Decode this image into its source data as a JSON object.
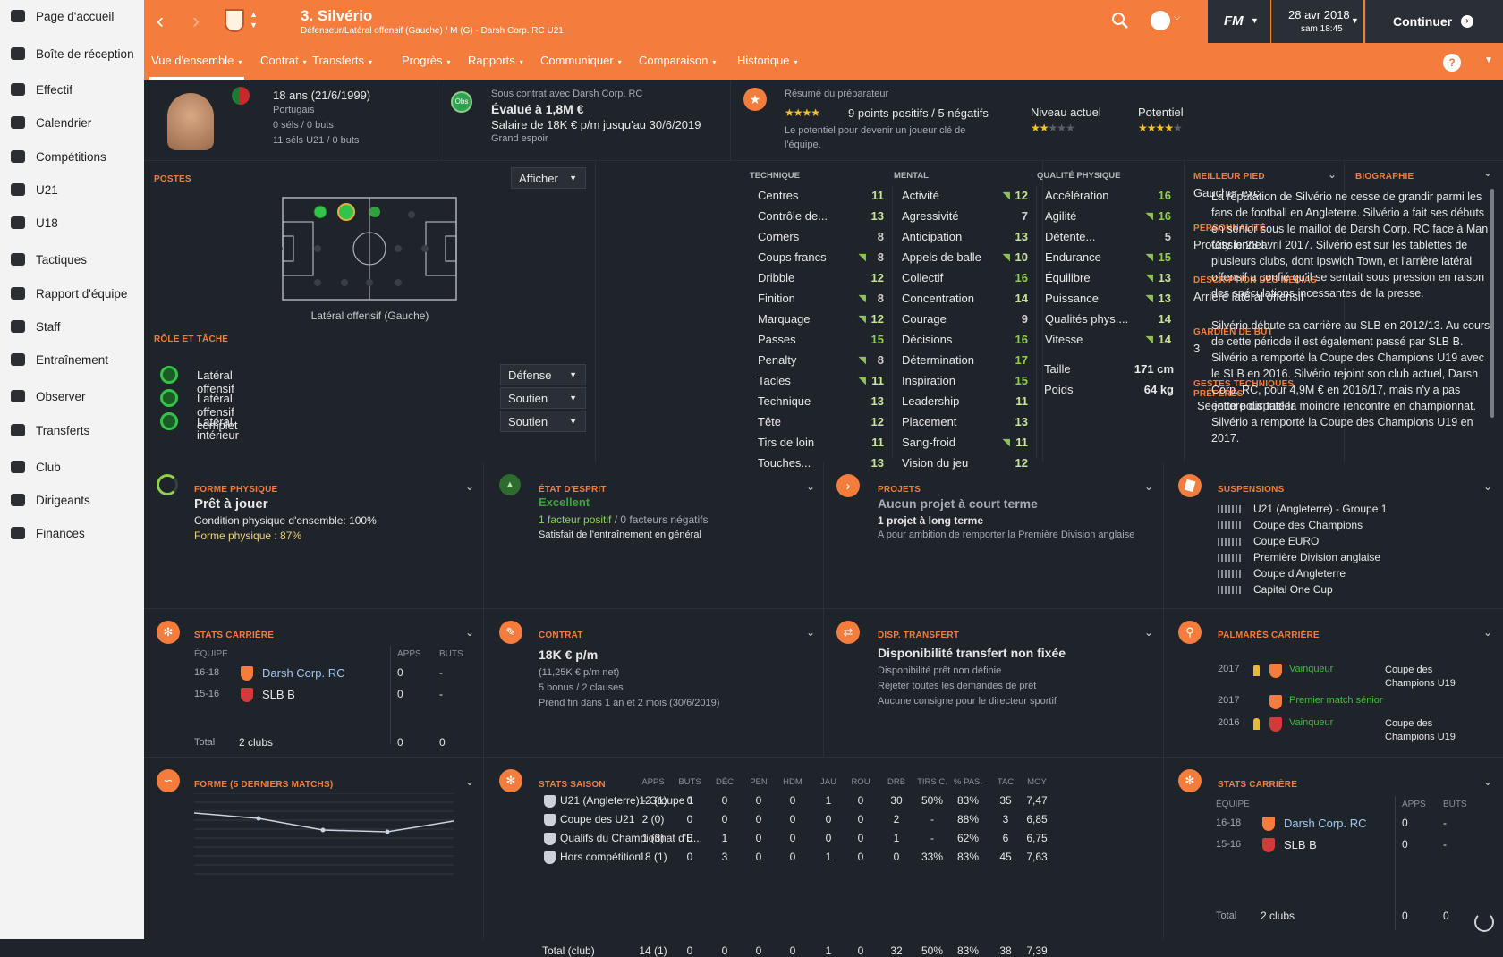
{
  "sidebar": {
    "items": [
      {
        "label": "Page d'accueil",
        "icon": "home-icon"
      },
      {
        "label": "Boîte de réception",
        "icon": "inbox-icon"
      },
      {
        "label": "Effectif",
        "icon": "squad-icon"
      },
      {
        "label": "Calendrier",
        "icon": "calendar-icon"
      },
      {
        "label": "Compétitions",
        "icon": "trophy-icon"
      },
      {
        "label": "U21",
        "icon": "u21-icon"
      },
      {
        "label": "U18",
        "icon": "u18-icon"
      },
      {
        "label": "Tactiques",
        "icon": "tactics-icon"
      },
      {
        "label": "Rapport d'équipe",
        "icon": "report-icon"
      },
      {
        "label": "Staff",
        "icon": "staff-icon"
      },
      {
        "label": "Entraînement",
        "icon": "training-icon"
      },
      {
        "label": "Observer",
        "icon": "search-icon"
      },
      {
        "label": "Transferts",
        "icon": "transfer-icon"
      },
      {
        "label": "Club",
        "icon": "shield-icon"
      },
      {
        "label": "Dirigeants",
        "icon": "board-icon"
      },
      {
        "label": "Finances",
        "icon": "pound-icon"
      }
    ]
  },
  "header": {
    "player_name": "3. Silvério",
    "subtitle": "Défenseur/Latéral offensif (Gauche) / M (G) - Darsh Corp. RC U21",
    "date": "28 avr 2018",
    "time": "sam 18:45",
    "continue": "Continuer",
    "fm": "FM"
  },
  "tabs": [
    "Vue d'ensemble",
    "Contrat",
    "Transferts",
    "Progrès",
    "Rapports",
    "Communiquer",
    "Comparaison",
    "Historique"
  ],
  "info": {
    "age": "18 ans (21/6/1999)",
    "nationality": "Portugais",
    "caps": "0 séls / 0 buts",
    "u21caps": "11 séls U21 / 0 buts",
    "obs": "Obs",
    "contract_with": "Sous contrat avec Darsh Corp. RC",
    "value": "Évalué à 1,8M €",
    "salary": "Salaire de 18K € p/m jusqu'au 30/6/2019",
    "status": "Grand espoir",
    "coach_title": "Résumé du préparateur",
    "points": "9 points positifs / 5 négatifs",
    "coach_desc": "Le potentiel pour devenir un joueur clé de l'équipe.",
    "current": "Niveau actuel",
    "potential": "Potentiel",
    "coach_stars": 3.5,
    "current_stars": 2,
    "potential_stars": 3.5
  },
  "positions": {
    "title": "POSTES",
    "show": "Afficher",
    "position_name": "Latéral offensif (Gauche)",
    "roles_title": "RÔLE ET TÂCHE",
    "roles": [
      {
        "name": "Latéral offensif",
        "duty": "Défense"
      },
      {
        "name": "Latéral offensif complet",
        "duty": "Soutien"
      },
      {
        "name": "Latéral intérieur",
        "duty": "Soutien"
      }
    ]
  },
  "attributes": {
    "technique_title": "TECHNIQUE",
    "mental_title": "MENTAL",
    "physical_title": "QUALITÉ PHYSIQUE",
    "technique": [
      [
        "Centres",
        "11",
        ""
      ],
      [
        "Contrôle de...",
        "13",
        ""
      ],
      [
        "Corners",
        "8",
        ""
      ],
      [
        "Coups francs",
        "8",
        "up"
      ],
      [
        "Dribble",
        "12",
        ""
      ],
      [
        "Finition",
        "8",
        "up"
      ],
      [
        "Marquage",
        "12",
        "up"
      ],
      [
        "Passes",
        "15",
        ""
      ],
      [
        "Penalty",
        "8",
        "up"
      ],
      [
        "Tacles",
        "11",
        "up"
      ],
      [
        "Technique",
        "13",
        ""
      ],
      [
        "Tête",
        "12",
        ""
      ],
      [
        "Tirs de loin",
        "11",
        ""
      ],
      [
        "Touches...",
        "13",
        ""
      ]
    ],
    "mental": [
      [
        "Activité",
        "12",
        "up"
      ],
      [
        "Agressivité",
        "7",
        ""
      ],
      [
        "Anticipation",
        "13",
        ""
      ],
      [
        "Appels de balle",
        "10",
        "up"
      ],
      [
        "Collectif",
        "16",
        ""
      ],
      [
        "Concentration",
        "14",
        ""
      ],
      [
        "Courage",
        "9",
        ""
      ],
      [
        "Décisions",
        "16",
        ""
      ],
      [
        "Détermination",
        "17",
        ""
      ],
      [
        "Inspiration",
        "15",
        ""
      ],
      [
        "Leadership",
        "11",
        ""
      ],
      [
        "Placement",
        "13",
        ""
      ],
      [
        "Sang-froid",
        "11",
        "up"
      ],
      [
        "Vision du jeu",
        "12",
        ""
      ]
    ],
    "physical": [
      [
        "Accélération",
        "16",
        ""
      ],
      [
        "Agilité",
        "16",
        "up"
      ],
      [
        "Détente...",
        "5",
        ""
      ],
      [
        "Endurance",
        "15",
        "up"
      ],
      [
        "Équilibre",
        "13",
        "up"
      ],
      [
        "Puissance",
        "13",
        "up"
      ],
      [
        "Qualités phys....",
        "14",
        ""
      ],
      [
        "Vitesse",
        "14",
        "up"
      ]
    ],
    "height_label": "Taille",
    "height": "171 cm",
    "weight_label": "Poids",
    "weight": "64 kg"
  },
  "side": {
    "foot_title": "MEILLEUR PIED",
    "foot": "Gaucher exc.",
    "personality_title": "PERSONNALITÉ",
    "personality": "Professionnel",
    "media_title": "DESCRIPTION DES MÉDIAS",
    "media": "Arrière latéral offensif",
    "gk_title": "GARDIEN DE BUT",
    "gk": "3",
    "traits_title": "GESTES TECHNIQUES PRÉFÉRÉS",
    "traits": "Se jette pour tacler"
  },
  "bio": {
    "title": "BIOGRAPHIE",
    "p1": "La réputation de Silvério ne cesse de grandir parmi les fans de football en Angleterre. Silvério a fait ses débuts en senior sous le maillot de Darsh Corp. RC face à Man City le 23 avril 2017. Silvério est sur les tablettes de plusieurs clubs, dont Ipswich Town, et l'arrière latéral offensif a confié qu'il se sentait sous pression en raison des spéculations incessantes de la presse.",
    "p2": "Silvério débute sa carrière au SLB en 2012/13. Au cours de cette période il est également passé par SLB B. Silvério a remporté la Coupe des Champions U19 avec le SLB en 2016. Silvério rejoint son club actuel, Darsh Corp. RC, pour 4,9M € en 2016/17, mais n'y a pas encore disputé la moindre rencontre en championnat. Silvério a remporté la Coupe des Champions U19 en 2017."
  },
  "cards": {
    "fitness": {
      "title": "FORME PHYSIQUE",
      "status": "Prêt à jouer",
      "line1": "Condition physique d'ensemble: 100%",
      "line2": "Forme physique : 87%"
    },
    "morale": {
      "title": "ÉTAT D'ESPRIT",
      "status": "Excellent",
      "pos": "1 facteur positif",
      "sep": "/",
      "neg": "0 facteurs négatifs",
      "line": "Satisfait de l'entraînement en général"
    },
    "projects": {
      "title": "PROJETS",
      "short": "Aucun projet à court terme",
      "long": "1 projet à long terme",
      "line": "A pour ambition de remporter la Première Division anglaise"
    },
    "suspensions": {
      "title": "SUSPENSIONS",
      "items": [
        "U21 (Angleterre) - Groupe 1",
        "Coupe des Champions",
        "Coupe EURO",
        "Première Division anglaise",
        "Coupe d'Angleterre",
        "Capital One Cup"
      ]
    },
    "career": {
      "title": "STATS CARRIÈRE",
      "h_team": "ÉQUIPE",
      "h_apps": "APPS",
      "h_goals": "BUTS",
      "rows": [
        {
          "years": "16-18",
          "team": "Darsh Corp. RC",
          "apps": "0",
          "goals": "-"
        },
        {
          "years": "15-16",
          "team": "SLB B",
          "apps": "0",
          "goals": "-"
        }
      ],
      "total_label": "Total",
      "total_clubs": "2 clubs",
      "total_apps": "0",
      "total_goals": "0"
    },
    "contract": {
      "title": "CONTRAT",
      "wage": "18K € p/m",
      "net": "(11,25K € p/m net)",
      "bonus": "5 bonus / 2 clauses",
      "end": "Prend fin dans 1 an et 2 mois",
      "end_date": "(30/6/2019)"
    },
    "transfer": {
      "title": "DISP. TRANSFERT",
      "status": "Disponibilité transfert non fixée",
      "l1": "Disponibilité prêt non définie",
      "l2": "Rejeter toutes les demandes de prêt",
      "l3": "Aucune consigne pour le directeur sportif"
    },
    "honours": {
      "title": "PALMARÈS CARRIÈRE",
      "items": [
        {
          "year": "2017",
          "result": "Vainqueur",
          "comp": "Coupe des Champions U19"
        },
        {
          "year": "2017",
          "result": "Premier match sénior",
          "comp": ""
        },
        {
          "year": "2016",
          "result": "Vainqueur",
          "comp": "Coupe des Champions U19"
        }
      ]
    },
    "form": {
      "title": "FORME (5 DERNIERS MATCHS)"
    },
    "season": {
      "title": "STATS SAISON",
      "headers": [
        "APPS",
        "BUTS",
        "DÉC",
        "PEN",
        "HDM",
        "JAU",
        "ROU",
        "DRB",
        "TIRS C.",
        "% PAS.",
        "TAC",
        "MOY"
      ],
      "rows": [
        {
          "comp": "U21 (Angleterre) - Groupe 1",
          "vals": [
            "12 (1)",
            "0",
            "0",
            "0",
            "0",
            "1",
            "0",
            "30",
            "50%",
            "83%",
            "35",
            "7,47"
          ]
        },
        {
          "comp": "Coupe des U21",
          "vals": [
            "2 (0)",
            "0",
            "0",
            "0",
            "0",
            "0",
            "0",
            "2",
            "-",
            "88%",
            "3",
            "6,85"
          ]
        },
        {
          "comp": "Qualifs du Championnat d'E...",
          "vals": [
            "1 (3)",
            "0",
            "1",
            "0",
            "0",
            "0",
            "0",
            "1",
            "-",
            "62%",
            "6",
            "6,75"
          ]
        },
        {
          "comp": "Hors compétition",
          "vals": [
            "18 (1)",
            "0",
            "3",
            "0",
            "0",
            "1",
            "0",
            "0",
            "33%",
            "83%",
            "45",
            "7,63"
          ]
        }
      ],
      "total": {
        "comp": "Total (club)",
        "vals": [
          "14 (1)",
          "0",
          "0",
          "0",
          "0",
          "1",
          "0",
          "32",
          "50%",
          "83%",
          "38",
          "7,39"
        ]
      }
    }
  },
  "colors": {
    "accent": "#f47d3e",
    "green": "#8fcf4e",
    "bg": "#1f232a"
  }
}
